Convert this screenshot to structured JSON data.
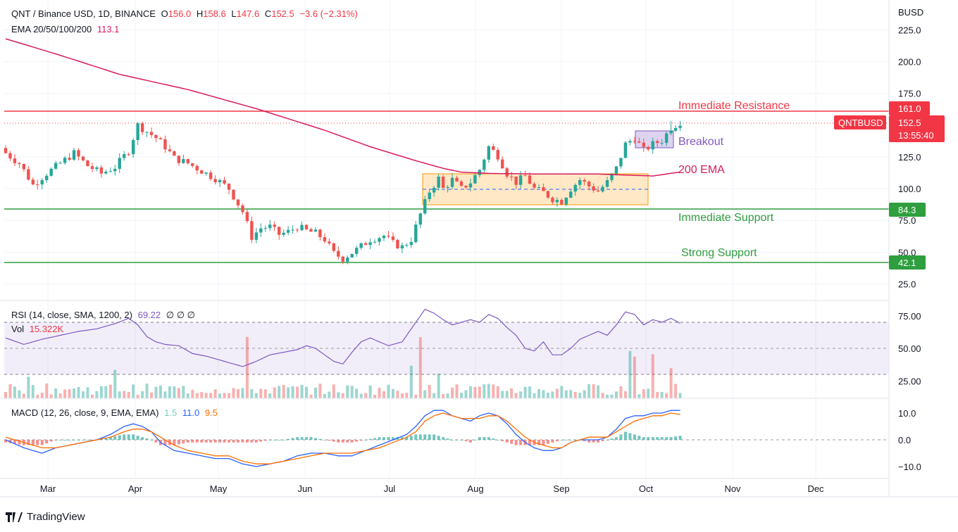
{
  "header": {
    "symbol": "QNT / Binance USD, 1D, BINANCE",
    "o_label": "O",
    "o": "156.0",
    "h_label": "H",
    "h": "158.6",
    "l_label": "L",
    "l": "147.6",
    "c_label": "C",
    "c": "152.5",
    "change": "−3.6 (−2.31%)",
    "ema_label": "EMA 20/50/100/200",
    "ema_value": "113.1",
    "rsi_label": "RSI (14, close, SMA, 1200, 2)",
    "rsi_value": "69.22",
    "rsi_na": "∅ ∅ ∅",
    "vol_label": "Vol",
    "vol_value": "15.322K",
    "macd_label": "MACD (12, 26, close, 9, EMA, EMA)",
    "macd_hist": "1.5",
    "macd_line": "11.0",
    "macd_signal": "9.5"
  },
  "price_axis": {
    "currency": "BUSD",
    "ticks": [
      "225.0",
      "200.0",
      "175.0",
      "125.0",
      "100.0",
      "75.0",
      "50.0",
      "25.0"
    ],
    "label_161": "161.0",
    "label_843": "84.3",
    "label_421": "42.1",
    "last_symbol": "QNTBUSD",
    "last_price": "152.5",
    "countdown": "13:55:40"
  },
  "rsi_axis": {
    "ticks": [
      "75.00",
      "50.00",
      "25.00"
    ]
  },
  "macd_axis": {
    "ticks": [
      "10.0",
      "0.0",
      "−10.0"
    ]
  },
  "time_axis": {
    "ticks": [
      "Mar",
      "Apr",
      "May",
      "Jun",
      "Jul",
      "Aug",
      "Sep",
      "Oct",
      "Nov",
      "Dec"
    ]
  },
  "annotations": {
    "resistance": "Immediate Resistance",
    "breakout": "Breakout",
    "ema200": "200 EMA",
    "support": "Immediate Support",
    "strong_support": "Strong Support"
  },
  "brand": "TradingView",
  "colors": {
    "up": "#26a69a",
    "down": "#ef5350",
    "ema": "#d81b60",
    "resistance": "#f23645",
    "support": "#2e9e3e",
    "rsi": "#7e57c2",
    "macd": "#2962ff",
    "signal": "#ff6d00"
  },
  "chart_data": {
    "type": "candlestick",
    "title": "QNT / Binance USD, 1D, BINANCE",
    "ylim": [
      12,
      243
    ],
    "levels": {
      "resistance": 161.0,
      "immediate_support": 84.3,
      "strong_support": 42.1,
      "last": 152.5
    },
    "ema200": [
      [
        0,
        218
      ],
      [
        12,
        205
      ],
      [
        25,
        190
      ],
      [
        40,
        178
      ],
      [
        55,
        163
      ],
      [
        70,
        146
      ],
      [
        80,
        133
      ],
      [
        90,
        122
      ],
      [
        96,
        116
      ],
      [
        100,
        113
      ],
      [
        106,
        112
      ],
      [
        118,
        111.5
      ],
      [
        130,
        111.5
      ],
      [
        142,
        110
      ],
      [
        148,
        113.1
      ]
    ],
    "close_path": [
      [
        0,
        128
      ],
      [
        3,
        120
      ],
      [
        6,
        103
      ],
      [
        9,
        112
      ],
      [
        12,
        120
      ],
      [
        15,
        128
      ],
      [
        18,
        118
      ],
      [
        21,
        112
      ],
      [
        24,
        117
      ],
      [
        27,
        130
      ],
      [
        29,
        150
      ],
      [
        31,
        145
      ],
      [
        33,
        140
      ],
      [
        35,
        133
      ],
      [
        37,
        124
      ],
      [
        40,
        120
      ],
      [
        43,
        114
      ],
      [
        46,
        108
      ],
      [
        49,
        100
      ],
      [
        52,
        82
      ],
      [
        54,
        62
      ],
      [
        56,
        69
      ],
      [
        58,
        70
      ],
      [
        60,
        64
      ],
      [
        62,
        66
      ],
      [
        64,
        70
      ],
      [
        66,
        67
      ],
      [
        68,
        65
      ],
      [
        70,
        60
      ],
      [
        72,
        49
      ],
      [
        74,
        45
      ],
      [
        77,
        52
      ],
      [
        80,
        60
      ],
      [
        83,
        63
      ],
      [
        85,
        57
      ],
      [
        87,
        54
      ],
      [
        89,
        60
      ],
      [
        91,
        80
      ],
      [
        93,
        98
      ],
      [
        95,
        108
      ],
      [
        96,
        100
      ],
      [
        98,
        107
      ],
      [
        100,
        100
      ],
      [
        102,
        105
      ],
      [
        104,
        115
      ],
      [
        106,
        133
      ],
      [
        108,
        126
      ],
      [
        110,
        112
      ],
      [
        112,
        105
      ],
      [
        114,
        110
      ],
      [
        116,
        100
      ],
      [
        118,
        97
      ],
      [
        120,
        92
      ],
      [
        122,
        90
      ],
      [
        124,
        100
      ],
      [
        126,
        107
      ],
      [
        128,
        102
      ],
      [
        130,
        98
      ],
      [
        132,
        105
      ],
      [
        134,
        116
      ],
      [
        136,
        135
      ],
      [
        138,
        140
      ],
      [
        140,
        130
      ],
      [
        142,
        135
      ],
      [
        144,
        138
      ],
      [
        146,
        148
      ],
      [
        148,
        152.5
      ]
    ],
    "rsi": [
      [
        0,
        58
      ],
      [
        4,
        53
      ],
      [
        8,
        57
      ],
      [
        12,
        60
      ],
      [
        16,
        63
      ],
      [
        20,
        65
      ],
      [
        24,
        69
      ],
      [
        27,
        73
      ],
      [
        29,
        68
      ],
      [
        31,
        59
      ],
      [
        33,
        55
      ],
      [
        35,
        53
      ],
      [
        38,
        52
      ],
      [
        41,
        46
      ],
      [
        44,
        44
      ],
      [
        47,
        41
      ],
      [
        50,
        38
      ],
      [
        52,
        36
      ],
      [
        55,
        40
      ],
      [
        58,
        45
      ],
      [
        61,
        47
      ],
      [
        64,
        49
      ],
      [
        66,
        52
      ],
      [
        68,
        50
      ],
      [
        70,
        45
      ],
      [
        72,
        40
      ],
      [
        74,
        38
      ],
      [
        76,
        47
      ],
      [
        78,
        55
      ],
      [
        80,
        58
      ],
      [
        82,
        55
      ],
      [
        84,
        52
      ],
      [
        87,
        55
      ],
      [
        89,
        65
      ],
      [
        91,
        75
      ],
      [
        92,
        80
      ],
      [
        94,
        77
      ],
      [
        96,
        72
      ],
      [
        98,
        68
      ],
      [
        100,
        70
      ],
      [
        102,
        72
      ],
      [
        104,
        70
      ],
      [
        106,
        76
      ],
      [
        108,
        73
      ],
      [
        110,
        66
      ],
      [
        112,
        60
      ],
      [
        114,
        50
      ],
      [
        116,
        48
      ],
      [
        118,
        55
      ],
      [
        120,
        45
      ],
      [
        122,
        45
      ],
      [
        124,
        50
      ],
      [
        126,
        57
      ],
      [
        128,
        60
      ],
      [
        130,
        63
      ],
      [
        132,
        60
      ],
      [
        134,
        68
      ],
      [
        136,
        78
      ],
      [
        138,
        76
      ],
      [
        140,
        68
      ],
      [
        142,
        72
      ],
      [
        144,
        70
      ],
      [
        146,
        73
      ],
      [
        148,
        69.22
      ]
    ],
    "rsi_band": [
      30,
      70
    ],
    "macd_line": [
      [
        0,
        0
      ],
      [
        4,
        -3
      ],
      [
        8,
        -5
      ],
      [
        11,
        -3
      ],
      [
        14,
        -2
      ],
      [
        17,
        -1
      ],
      [
        20,
        0
      ],
      [
        23,
        2
      ],
      [
        26,
        5
      ],
      [
        28,
        6
      ],
      [
        30,
        5
      ],
      [
        32,
        3
      ],
      [
        34,
        -1
      ],
      [
        37,
        -4
      ],
      [
        40,
        -5
      ],
      [
        43,
        -6
      ],
      [
        46,
        -7
      ],
      [
        49,
        -7
      ],
      [
        52,
        -9
      ],
      [
        55,
        -10
      ],
      [
        58,
        -9
      ],
      [
        61,
        -8
      ],
      [
        64,
        -6
      ],
      [
        67,
        -5
      ],
      [
        70,
        -5
      ],
      [
        73,
        -6
      ],
      [
        76,
        -6
      ],
      [
        79,
        -4
      ],
      [
        82,
        -2
      ],
      [
        85,
        0
      ],
      [
        88,
        2
      ],
      [
        90,
        5
      ],
      [
        92,
        9
      ],
      [
        94,
        11
      ],
      [
        96,
        11
      ],
      [
        98,
        9
      ],
      [
        100,
        8
      ],
      [
        102,
        7
      ],
      [
        104,
        9
      ],
      [
        106,
        10
      ],
      [
        108,
        9
      ],
      [
        110,
        6
      ],
      [
        112,
        2
      ],
      [
        114,
        -1
      ],
      [
        116,
        -3
      ],
      [
        118,
        -4
      ],
      [
        120,
        -4
      ],
      [
        122,
        -3
      ],
      [
        124,
        -1
      ],
      [
        126,
        0
      ],
      [
        128,
        0
      ],
      [
        130,
        0
      ],
      [
        132,
        1
      ],
      [
        134,
        4
      ],
      [
        136,
        8
      ],
      [
        138,
        9
      ],
      [
        140,
        9
      ],
      [
        142,
        10
      ],
      [
        144,
        10
      ],
      [
        146,
        11
      ],
      [
        148,
        11.0
      ]
    ],
    "macd_signal": [
      [
        0,
        1
      ],
      [
        4,
        -1
      ],
      [
        8,
        -3
      ],
      [
        11,
        -3
      ],
      [
        14,
        -2
      ],
      [
        17,
        -1
      ],
      [
        20,
        0
      ],
      [
        23,
        1
      ],
      [
        26,
        3
      ],
      [
        28,
        4
      ],
      [
        30,
        4
      ],
      [
        32,
        3
      ],
      [
        34,
        1
      ],
      [
        37,
        -2
      ],
      [
        40,
        -4
      ],
      [
        43,
        -5
      ],
      [
        46,
        -6
      ],
      [
        49,
        -6
      ],
      [
        52,
        -8
      ],
      [
        55,
        -9
      ],
      [
        58,
        -9
      ],
      [
        61,
        -8
      ],
      [
        64,
        -7
      ],
      [
        67,
        -6
      ],
      [
        70,
        -5
      ],
      [
        73,
        -5
      ],
      [
        76,
        -5
      ],
      [
        79,
        -4
      ],
      [
        82,
        -3
      ],
      [
        85,
        -1
      ],
      [
        88,
        1
      ],
      [
        90,
        3
      ],
      [
        92,
        7
      ],
      [
        94,
        9
      ],
      [
        96,
        10
      ],
      [
        98,
        9
      ],
      [
        100,
        8
      ],
      [
        102,
        8
      ],
      [
        104,
        8
      ],
      [
        106,
        9
      ],
      [
        108,
        9
      ],
      [
        110,
        7
      ],
      [
        112,
        4
      ],
      [
        114,
        1
      ],
      [
        116,
        -1
      ],
      [
        118,
        -2
      ],
      [
        120,
        -3
      ],
      [
        122,
        -3
      ],
      [
        124,
        -1
      ],
      [
        126,
        0
      ],
      [
        128,
        1
      ],
      [
        130,
        1
      ],
      [
        132,
        1
      ],
      [
        134,
        3
      ],
      [
        136,
        5
      ],
      [
        138,
        7
      ],
      [
        140,
        8
      ],
      [
        142,
        9
      ],
      [
        144,
        9
      ],
      [
        146,
        10
      ],
      [
        148,
        9.5
      ]
    ]
  }
}
